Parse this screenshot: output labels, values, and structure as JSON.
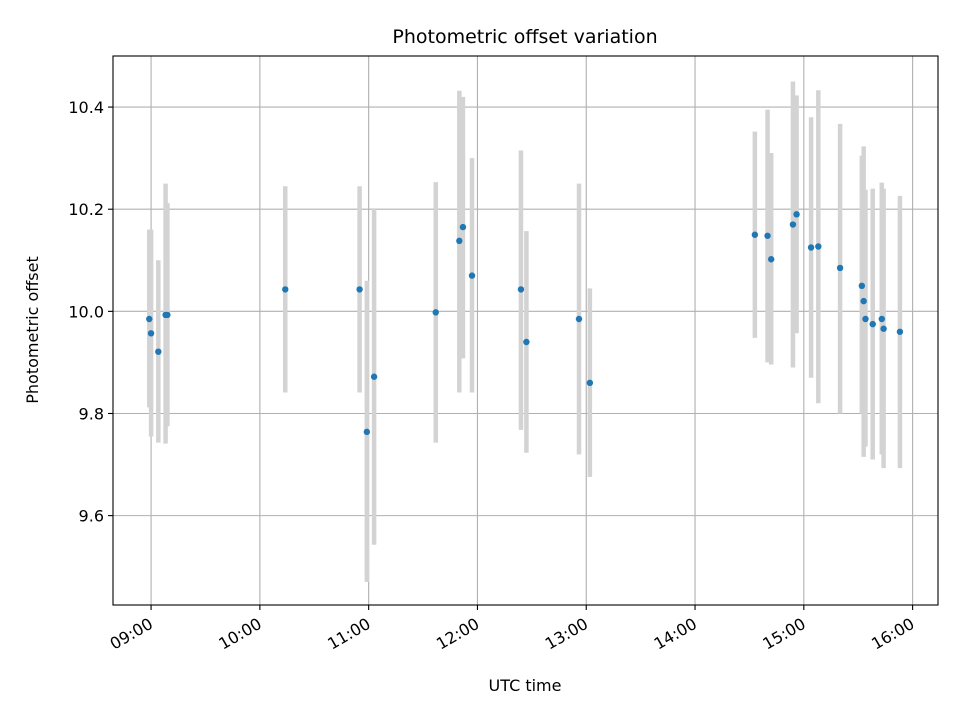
{
  "chart_data": {
    "type": "scatter",
    "title": "Photometric offset variation",
    "xlabel": "UTC time",
    "ylabel": "Photometric offset",
    "xlim": [
      "08:39",
      "16:14"
    ],
    "ylim": [
      9.425,
      10.5
    ],
    "x_ticks": [
      "09:00",
      "10:00",
      "11:00",
      "12:00",
      "13:00",
      "14:00",
      "15:00",
      "16:00"
    ],
    "y_ticks": [
      9.6,
      9.8,
      10.0,
      10.2,
      10.4
    ],
    "y_tick_labels": [
      "9.6",
      "9.8",
      "10.0",
      "10.2",
      "10.4"
    ],
    "grid": true,
    "colors": {
      "point": "#1f77b4",
      "errorbar": "#d3d3d3",
      "grid": "#b0b0b0"
    },
    "points": [
      {
        "t": "08:59",
        "y": 9.985,
        "lo": 9.812,
        "hi": 10.16
      },
      {
        "t": "09:00",
        "y": 9.957,
        "lo": 9.755,
        "hi": 10.16
      },
      {
        "t": "09:04",
        "y": 9.921,
        "lo": 9.743,
        "hi": 10.1
      },
      {
        "t": "09:08",
        "y": 9.993,
        "lo": 9.741,
        "hi": 10.25
      },
      {
        "t": "09:09",
        "y": 9.993,
        "lo": 9.775,
        "hi": 10.212
      },
      {
        "t": "10:14",
        "y": 10.043,
        "lo": 9.841,
        "hi": 10.245
      },
      {
        "t": "10:55",
        "y": 10.043,
        "lo": 9.841,
        "hi": 10.245
      },
      {
        "t": "10:59",
        "y": 9.764,
        "lo": 9.47,
        "hi": 10.06
      },
      {
        "t": "11:03",
        "y": 9.872,
        "lo": 9.543,
        "hi": 10.202
      },
      {
        "t": "11:37",
        "y": 9.998,
        "lo": 9.743,
        "hi": 10.253
      },
      {
        "t": "11:50",
        "y": 10.138,
        "lo": 9.841,
        "hi": 10.432
      },
      {
        "t": "11:52",
        "y": 10.165,
        "lo": 9.908,
        "hi": 10.42
      },
      {
        "t": "11:57",
        "y": 10.07,
        "lo": 9.841,
        "hi": 10.3
      },
      {
        "t": "12:24",
        "y": 10.043,
        "lo": 9.768,
        "hi": 10.315
      },
      {
        "t": "12:27",
        "y": 9.94,
        "lo": 9.723,
        "hi": 10.157
      },
      {
        "t": "12:56",
        "y": 9.985,
        "lo": 9.72,
        "hi": 10.25
      },
      {
        "t": "13:02",
        "y": 9.86,
        "lo": 9.676,
        "hi": 10.045
      },
      {
        "t": "14:33",
        "y": 10.15,
        "lo": 9.948,
        "hi": 10.352
      },
      {
        "t": "14:40",
        "y": 10.148,
        "lo": 9.9,
        "hi": 10.395
      },
      {
        "t": "14:42",
        "y": 10.102,
        "lo": 9.896,
        "hi": 10.31
      },
      {
        "t": "14:54",
        "y": 10.17,
        "lo": 9.89,
        "hi": 10.45
      },
      {
        "t": "14:56",
        "y": 10.19,
        "lo": 9.957,
        "hi": 10.423
      },
      {
        "t": "15:04",
        "y": 10.125,
        "lo": 9.87,
        "hi": 10.38
      },
      {
        "t": "15:08",
        "y": 10.127,
        "lo": 9.82,
        "hi": 10.433
      },
      {
        "t": "15:20",
        "y": 10.085,
        "lo": 9.8,
        "hi": 10.367
      },
      {
        "t": "15:32",
        "y": 10.05,
        "lo": 9.8,
        "hi": 10.305
      },
      {
        "t": "15:33",
        "y": 10.02,
        "lo": 9.715,
        "hi": 10.323
      },
      {
        "t": "15:34",
        "y": 9.985,
        "lo": 9.735,
        "hi": 10.238
      },
      {
        "t": "15:38",
        "y": 9.975,
        "lo": 9.71,
        "hi": 10.24
      },
      {
        "t": "15:43",
        "y": 9.985,
        "lo": 9.72,
        "hi": 10.252
      },
      {
        "t": "15:44",
        "y": 9.966,
        "lo": 9.693,
        "hi": 10.24
      },
      {
        "t": "15:53",
        "y": 9.96,
        "lo": 9.693,
        "hi": 10.226
      }
    ]
  }
}
